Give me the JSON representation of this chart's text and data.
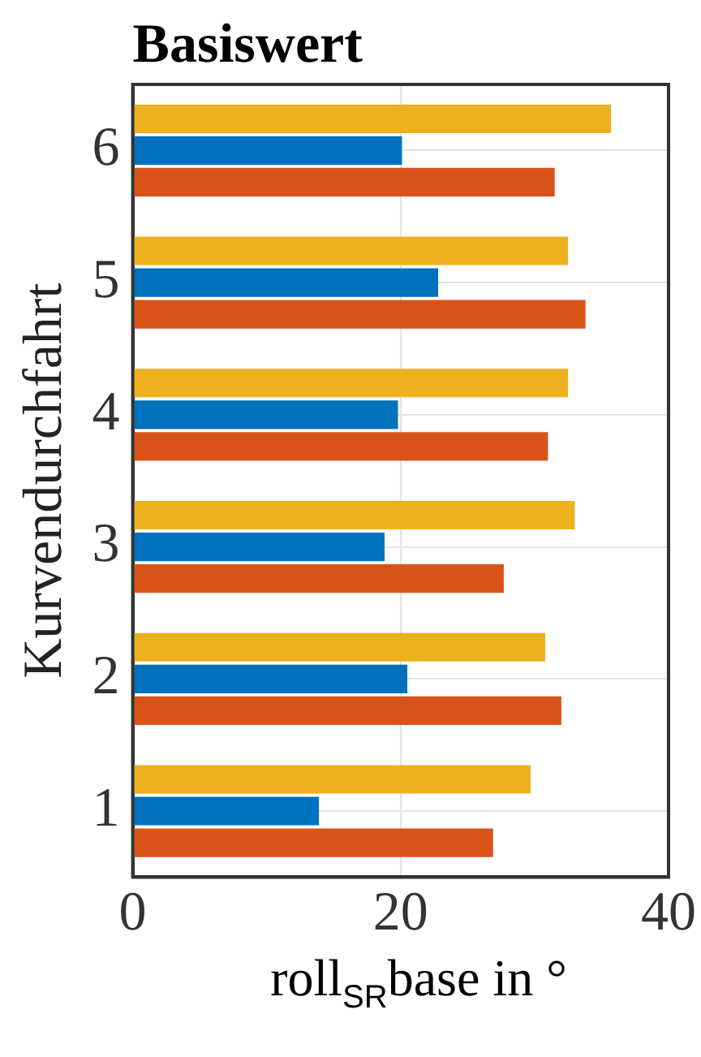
{
  "chart_data": {
    "type": "bar",
    "orientation": "horizontal",
    "title": "Basiswert",
    "xlabel": "roll$_{SR}$base in °",
    "ylabel": "Kurvendurchfahrt",
    "categories": [
      "6",
      "5",
      "4",
      "3",
      "2",
      "1"
    ],
    "series": [
      {
        "color": "#edb120",
        "values": [
          35.7,
          32.5,
          32.5,
          33.0,
          30.8,
          29.7
        ]
      },
      {
        "color": "#0072bd",
        "values": [
          20.1,
          22.8,
          19.8,
          18.8,
          20.5,
          13.9
        ]
      },
      {
        "color": "#d95319",
        "values": [
          31.5,
          33.8,
          31.0,
          27.7,
          32.0,
          26.9
        ]
      }
    ],
    "xlim": [
      0,
      40
    ],
    "xticks": [
      0,
      20,
      40
    ],
    "grid": true,
    "legend": false
  }
}
